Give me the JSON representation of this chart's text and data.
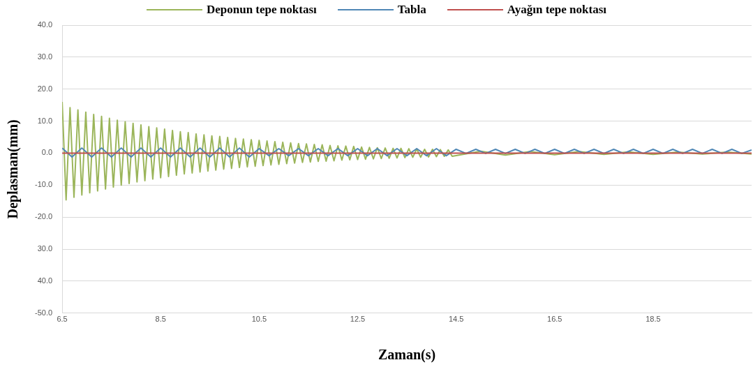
{
  "chart_data": {
    "type": "line",
    "xlabel": "Zaman(s)",
    "ylabel": "Deplasman(mm)",
    "xlim": [
      6.5,
      20.5
    ],
    "xticks": [
      6.5,
      8.5,
      10.5,
      12.5,
      14.5,
      16.5,
      18.5
    ],
    "ylim": [
      -50,
      40
    ],
    "yticks": [
      {
        "value": 40,
        "label": "40.0"
      },
      {
        "value": 30,
        "label": "30.0"
      },
      {
        "value": 20,
        "label": "20.0"
      },
      {
        "value": 10,
        "label": "10.0"
      },
      {
        "value": 0,
        "label": "0.0"
      },
      {
        "value": -10,
        "label": "-10.0"
      },
      {
        "value": -20,
        "label": "-20.0"
      },
      {
        "value": -30,
        "label": "30.0"
      },
      {
        "value": -40,
        "label": "40.0"
      },
      {
        "value": -50,
        "label": "-50.0"
      }
    ],
    "grid": "y",
    "legend": "top",
    "marker": "none",
    "line_style": "solid",
    "series": [
      {
        "name": "Deponun tepe noktası",
        "color": "#9bb55a",
        "x": [
          6.5,
          6.58,
          6.66,
          6.74,
          6.82,
          6.9,
          6.98,
          7.06,
          7.14,
          7.22,
          7.3,
          7.38,
          7.46,
          7.54,
          7.62,
          7.7,
          7.78,
          7.86,
          7.94,
          8.02,
          8.1,
          8.18,
          8.26,
          8.34,
          8.42,
          8.5,
          8.58,
          8.66,
          8.74,
          8.82,
          8.9,
          8.98,
          9.06,
          9.14,
          9.22,
          9.3,
          9.38,
          9.46,
          9.54,
          9.62,
          9.7,
          9.78,
          9.86,
          9.94,
          10.02,
          10.1,
          10.18,
          10.26,
          10.34,
          10.42,
          10.5,
          10.58,
          10.66,
          10.74,
          10.82,
          10.9,
          10.98,
          11.06,
          11.14,
          11.22,
          11.3,
          11.38,
          11.46,
          11.54,
          11.62,
          11.7,
          11.78,
          11.86,
          11.94,
          12.02,
          12.1,
          12.18,
          12.26,
          12.34,
          12.42,
          12.5,
          12.58,
          12.66,
          12.74,
          12.82,
          12.9,
          12.98,
          13.06,
          13.14,
          13.22,
          13.3,
          13.38,
          13.46,
          13.54,
          13.62,
          13.7,
          13.78,
          13.86,
          13.94,
          14.02,
          14.1,
          14.18,
          14.26,
          14.34,
          14.42,
          15,
          15.5,
          16,
          16.5,
          17,
          17.5,
          18,
          18.5,
          19,
          19.5,
          20,
          20.5
        ],
        "values": [
          16,
          -14.6,
          14.2,
          -13.8,
          13.5,
          -13.1,
          12.8,
          -12.4,
          12.1,
          -11.8,
          11.5,
          -11.2,
          10.9,
          -10.6,
          10.3,
          -10,
          9.8,
          -9.5,
          9.3,
          -9,
          8.8,
          -8.6,
          8.3,
          -8.1,
          7.9,
          -7.7,
          7.5,
          -7.3,
          7.1,
          -6.9,
          6.7,
          -6.5,
          6.4,
          -6.2,
          6,
          -5.9,
          5.7,
          -5.6,
          5.4,
          -5.3,
          5.2,
          -5,
          4.9,
          -4.8,
          4.6,
          -4.5,
          4.4,
          -4.3,
          4.2,
          -4.1,
          4,
          -3.9,
          3.8,
          -3.7,
          3.6,
          -3.5,
          3.4,
          -3.3,
          3.2,
          -3.1,
          3,
          -2.9,
          2.9,
          -2.8,
          2.7,
          -2.6,
          2.6,
          -2.5,
          2.4,
          -2.4,
          2.3,
          -2.2,
          2.2,
          -2.1,
          2.1,
          -2,
          1.9,
          -1.9,
          1.8,
          -1.8,
          1.7,
          -1.7,
          1.6,
          -1.6,
          1.5,
          -1.5,
          1.5,
          -1.4,
          1.4,
          -1.3,
          1.3,
          -1.3,
          1.2,
          -1.2,
          1.2,
          -1.1,
          1.1,
          -1,
          1,
          -1,
          0.6,
          -0.6,
          0.5,
          -0.5,
          0.5,
          -0.4,
          0.4,
          -0.4,
          0.3,
          -0.3,
          0.3,
          -0.3
        ]
      },
      {
        "name": "Tabla",
        "color": "#4f87b5",
        "x": [
          6.5,
          6.7,
          6.9,
          7.1,
          7.3,
          7.5,
          7.7,
          7.9,
          8.1,
          8.3,
          8.5,
          8.7,
          8.9,
          9.1,
          9.3,
          9.5,
          9.7,
          9.9,
          10.1,
          10.3,
          10.5,
          10.7,
          10.9,
          11.1,
          11.3,
          11.5,
          11.7,
          11.9,
          12.1,
          12.3,
          12.5,
          12.7,
          12.9,
          13.1,
          13.3,
          13.5,
          13.7,
          13.9,
          14.1,
          14.3,
          14.5,
          14.7,
          14.9,
          15.1,
          15.3,
          15.5,
          15.7,
          15.9,
          16.1,
          16.3,
          16.5,
          16.7,
          16.9,
          17.1,
          17.3,
          17.5,
          17.7,
          17.9,
          18.1,
          18.3,
          18.5,
          18.7,
          18.9,
          19.1,
          19.3,
          19.5,
          19.7,
          19.9,
          20.1,
          20.3,
          20.5
        ],
        "values": [
          1.6,
          -1.2,
          1.6,
          -1.2,
          1.6,
          -1.2,
          1.6,
          -1.2,
          1.6,
          -1.2,
          1.6,
          -1.2,
          1.6,
          -1.2,
          1.6,
          -1.2,
          1.6,
          -1.2,
          1.6,
          -1.2,
          1.4,
          -0.8,
          1.4,
          -0.8,
          1.4,
          -0.8,
          1.4,
          -0.8,
          1.4,
          -0.8,
          1.4,
          -0.8,
          1.4,
          -0.8,
          1.4,
          -0.8,
          1.4,
          -0.8,
          1.4,
          -0.8,
          1.2,
          -0.1,
          1.2,
          -0.1,
          1.2,
          -0.1,
          1.2,
          -0.1,
          1.2,
          -0.1,
          1.2,
          -0.1,
          1.2,
          -0.1,
          1.2,
          -0.1,
          1.2,
          -0.1,
          1.2,
          -0.1,
          1.2,
          -0.1,
          1.2,
          -0.1,
          1.2,
          -0.1,
          1.2,
          -0.1,
          1.2,
          -0.1,
          1
        ]
      },
      {
        "name": "Ayağın tepe noktası",
        "color": "#c0504d",
        "x": [
          6.5,
          20.5
        ],
        "values": [
          0,
          0
        ]
      }
    ]
  }
}
